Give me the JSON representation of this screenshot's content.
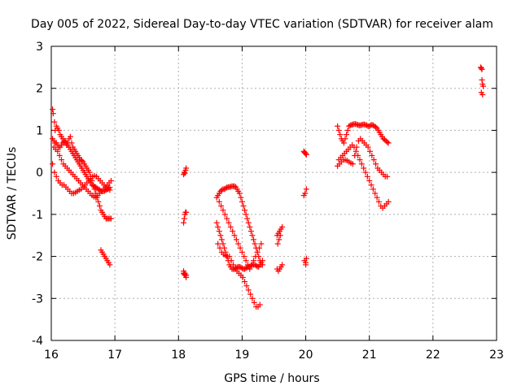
{
  "chart_data": {
    "type": "scatter",
    "title": "Day 005 of 2022, Sidereal Day-to-day VTEC variation (SDTVAR) for receiver alam",
    "xlabel": "GPS time / hours",
    "ylabel": "SDTVAR / TECUs",
    "xlim": [
      16,
      23
    ],
    "ylim": [
      -4,
      3
    ],
    "xticks": [
      "16",
      "17",
      "18",
      "19",
      "20",
      "21",
      "22",
      "23"
    ],
    "yticks": [
      "-4",
      "-3",
      "-2",
      "-1",
      "0",
      "1",
      "2",
      "3"
    ],
    "grid": true,
    "marker": "plus",
    "marker_color": "#ff0000",
    "series": [
      {
        "x": [
          16.02,
          16.03,
          16.05,
          16.06,
          16.08,
          16.1,
          16.12,
          16.14,
          16.16,
          16.18,
          16.2,
          16.22,
          16.24,
          16.26,
          16.28,
          16.3,
          16.32,
          16.34,
          16.36,
          16.38,
          16.4,
          16.42,
          16.44,
          16.46,
          16.48,
          16.5,
          16.52,
          16.54,
          16.56,
          16.58,
          16.6,
          16.62,
          16.64,
          16.66,
          16.68,
          16.7,
          16.72,
          16.74,
          16.76,
          16.78,
          16.8,
          16.82,
          16.84,
          16.86,
          16.88,
          16.9,
          16.92,
          16.94,
          16.02,
          16.04,
          16.06,
          16.08,
          16.1,
          16.12,
          16.14,
          16.16,
          16.18,
          16.2,
          16.22,
          16.24,
          16.26,
          16.28,
          16.3,
          16.32,
          16.34,
          16.36,
          16.38,
          16.4,
          16.42,
          16.44,
          16.46,
          16.48,
          16.5,
          16.52,
          16.54,
          16.56,
          16.58,
          16.6,
          16.62,
          16.64,
          16.66,
          16.68,
          16.7,
          16.72,
          16.74,
          16.76,
          16.78,
          16.8,
          16.82,
          16.84,
          16.86,
          16.88,
          16.9,
          16.92,
          16.02,
          16.05,
          16.08,
          16.11,
          16.14,
          16.17,
          16.2,
          16.23,
          16.26,
          16.29,
          16.32,
          16.35,
          16.38,
          16.41,
          16.44,
          16.47,
          16.5,
          16.53,
          16.56,
          16.59,
          16.62,
          16.65,
          16.68,
          16.71,
          16.74,
          16.77,
          16.8,
          16.83,
          16.86,
          16.89,
          16.92,
          16.04,
          16.07,
          16.1,
          16.13,
          16.16,
          16.19,
          16.22,
          16.25,
          16.28,
          16.31,
          16.34,
          16.37,
          16.4,
          16.43,
          16.46,
          16.49,
          16.52,
          16.55,
          16.58,
          16.61,
          16.64,
          16.67,
          16.7,
          16.73,
          16.76,
          16.79,
          16.82,
          16.85,
          16.88,
          16.91,
          16.94,
          16.78,
          16.8,
          16.82,
          16.84,
          16.86,
          16.88,
          16.9,
          16.92
        ],
        "y": [
          1.5,
          1.4,
          1.2,
          1.0,
          1.1,
          1.05,
          1.0,
          0.9,
          0.85,
          0.8,
          0.75,
          0.7,
          0.65,
          0.7,
          0.8,
          0.85,
          0.7,
          0.6,
          0.55,
          0.5,
          0.45,
          0.4,
          0.35,
          0.3,
          0.28,
          0.25,
          0.2,
          0.15,
          0.1,
          0.05,
          0.0,
          -0.1,
          -0.2,
          -0.3,
          -0.4,
          -0.5,
          -0.6,
          -0.7,
          -0.8,
          -0.9,
          -0.95,
          -1.0,
          -1.05,
          -1.1,
          -1.1,
          -1.1,
          -1.1,
          -1.1,
          0.8,
          0.75,
          0.7,
          0.7,
          0.65,
          0.6,
          0.6,
          0.65,
          0.7,
          0.72,
          0.75,
          0.7,
          0.65,
          0.6,
          0.55,
          0.5,
          0.45,
          0.4,
          0.35,
          0.3,
          0.25,
          0.2,
          0.15,
          0.1,
          0.05,
          0.0,
          -0.05,
          -0.1,
          -0.15,
          -0.2,
          -0.25,
          -0.3,
          -0.32,
          -0.34,
          -0.36,
          -0.38,
          -0.4,
          -0.42,
          -0.44,
          -0.45,
          -0.45,
          -0.44,
          -0.42,
          -0.4,
          -0.38,
          -0.36,
          0.2,
          0.0,
          -0.1,
          -0.2,
          -0.25,
          -0.3,
          -0.3,
          -0.35,
          -0.4,
          -0.45,
          -0.5,
          -0.5,
          -0.48,
          -0.45,
          -0.42,
          -0.4,
          -0.35,
          -0.3,
          -0.25,
          -0.2,
          -0.15,
          -0.1,
          -0.08,
          -0.1,
          -0.15,
          -0.2,
          -0.25,
          -0.3,
          -0.35,
          -0.4,
          -0.42,
          0.6,
          0.55,
          0.5,
          0.4,
          0.3,
          0.2,
          0.15,
          0.1,
          0.05,
          0.0,
          -0.05,
          -0.1,
          -0.15,
          -0.2,
          -0.25,
          -0.3,
          -0.35,
          -0.4,
          -0.45,
          -0.5,
          -0.55,
          -0.58,
          -0.6,
          -0.55,
          -0.5,
          -0.45,
          -0.4,
          -0.35,
          -0.3,
          -0.25,
          -0.2,
          -1.85,
          -1.9,
          -1.95,
          -2.0,
          -2.05,
          -2.1,
          -2.15,
          -2.2
        ]
      },
      {
        "x": [
          18.08,
          18.09,
          18.1,
          18.11,
          18.12,
          18.08,
          18.09,
          18.1,
          18.11,
          18.12,
          18.08,
          18.1,
          18.12,
          18.08,
          18.1,
          18.12,
          18.09,
          18.11
        ],
        "y": [
          -0.05,
          0.0,
          -0.02,
          0.05,
          0.1,
          -1.2,
          -1.1,
          -1.0,
          -0.95,
          -0.95,
          -2.35,
          -2.4,
          -2.45,
          -2.4,
          -2.45,
          -2.5,
          -2.42,
          -2.44
        ]
      },
      {
        "x": [
          18.6,
          18.62,
          18.64,
          18.66,
          18.68,
          18.7,
          18.72,
          18.74,
          18.76,
          18.78,
          18.8,
          18.82,
          18.84,
          18.86,
          18.88,
          18.9,
          18.92,
          18.94,
          18.96,
          18.98,
          19.0,
          19.02,
          19.04,
          19.06,
          19.08,
          19.1,
          19.12,
          19.14,
          19.16,
          19.18,
          19.2,
          19.22,
          19.24,
          19.26,
          19.28,
          19.3,
          19.32,
          18.6,
          18.62,
          18.64,
          18.66,
          18.68,
          18.7,
          18.72,
          18.74,
          18.76,
          18.78,
          18.8,
          18.82,
          18.84,
          18.86,
          18.88,
          18.9,
          18.92,
          18.94,
          18.96,
          18.98,
          19.0,
          19.02,
          19.04,
          19.06,
          19.08,
          19.1,
          19.12,
          19.14,
          19.16,
          19.18,
          19.2,
          19.22,
          19.24,
          19.26,
          19.28,
          19.3,
          19.32,
          18.62,
          18.65,
          18.68,
          18.71,
          18.74,
          18.77,
          18.8,
          18.83,
          18.86,
          18.89,
          18.92,
          18.95,
          18.98,
          19.01,
          19.04,
          19.07,
          19.1,
          19.13,
          19.16,
          19.19,
          19.22,
          19.25,
          19.28,
          18.64,
          18.67,
          18.7,
          18.73,
          18.76,
          18.79,
          18.82,
          18.85,
          18.88,
          18.91,
          18.94,
          18.97,
          19.0,
          19.03,
          19.06,
          19.09,
          19.12,
          19.15,
          19.18,
          19.21,
          19.24,
          19.27,
          19.3,
          19.55,
          19.57,
          19.59,
          19.61,
          19.63,
          19.55,
          19.57,
          19.59,
          19.61,
          19.63,
          19.56,
          19.58,
          19.6
        ],
        "y": [
          -0.6,
          -0.55,
          -0.5,
          -0.45,
          -0.42,
          -0.4,
          -0.4,
          -0.38,
          -0.36,
          -0.35,
          -0.35,
          -0.34,
          -0.33,
          -0.33,
          -0.33,
          -0.35,
          -0.4,
          -0.45,
          -0.5,
          -0.6,
          -0.7,
          -0.8,
          -0.9,
          -1.0,
          -1.1,
          -1.2,
          -1.3,
          -1.4,
          -1.5,
          -1.6,
          -1.7,
          -1.8,
          -1.9,
          -2.0,
          -2.1,
          -2.2,
          -2.2,
          -1.2,
          -1.3,
          -1.4,
          -1.5,
          -1.6,
          -1.7,
          -1.8,
          -1.9,
          -2.0,
          -2.1,
          -2.2,
          -2.25,
          -2.3,
          -2.3,
          -2.3,
          -2.28,
          -2.26,
          -2.25,
          -2.25,
          -2.26,
          -2.28,
          -2.3,
          -2.3,
          -2.28,
          -2.26,
          -2.25,
          -2.24,
          -2.22,
          -2.2,
          -2.2,
          -2.2,
          -2.22,
          -2.24,
          -2.25,
          -2.2,
          -2.15,
          -2.1,
          -1.7,
          -1.8,
          -1.9,
          -1.95,
          -1.98,
          -2.0,
          -2.0,
          -2.1,
          -2.2,
          -2.3,
          -2.35,
          -2.4,
          -2.45,
          -2.5,
          -2.6,
          -2.7,
          -2.8,
          -2.9,
          -3.0,
          -3.1,
          -3.2,
          -3.2,
          -3.15,
          -0.7,
          -0.8,
          -0.9,
          -1.0,
          -1.1,
          -1.2,
          -1.3,
          -1.4,
          -1.5,
          -1.6,
          -1.7,
          -1.8,
          -1.9,
          -2.0,
          -2.1,
          -2.2,
          -2.3,
          -2.2,
          -2.1,
          -2.0,
          -1.9,
          -1.8,
          -1.7,
          -1.5,
          -1.45,
          -1.4,
          -1.35,
          -1.3,
          -2.3,
          -2.35,
          -2.3,
          -2.25,
          -2.2,
          -1.7,
          -1.6,
          -1.5
        ]
      },
      {
        "x": [
          19.97,
          19.98,
          19.99,
          20.0,
          20.01,
          19.97,
          19.99,
          20.01,
          19.98,
          20.0,
          20.0,
          20.01
        ],
        "y": [
          0.5,
          0.48,
          0.46,
          0.45,
          0.42,
          -0.55,
          -0.5,
          -0.4,
          -2.1,
          -2.15,
          -2.2,
          -2.05
        ]
      },
      {
        "x": [
          20.5,
          20.52,
          20.54,
          20.56,
          20.58,
          20.6,
          20.62,
          20.64,
          20.66,
          20.68,
          20.7,
          20.72,
          20.74,
          20.76,
          20.78,
          20.8,
          20.82,
          20.84,
          20.86,
          20.88,
          20.9,
          20.92,
          20.94,
          20.96,
          20.98,
          21.0,
          21.02,
          21.04,
          21.06,
          21.08,
          21.1,
          21.12,
          21.14,
          21.16,
          21.18,
          21.2,
          21.22,
          21.24,
          21.26,
          21.28,
          21.3,
          20.5,
          20.53,
          20.56,
          20.59,
          20.62,
          20.65,
          20.68,
          20.71,
          20.74,
          20.77,
          20.8,
          20.83,
          20.86,
          20.89,
          20.92,
          20.95,
          20.98,
          21.01,
          21.04,
          21.07,
          21.1,
          21.13,
          21.16,
          21.19,
          21.22,
          21.25,
          21.28,
          20.52,
          20.55,
          20.58,
          20.61,
          20.64,
          20.67,
          20.7,
          20.73,
          20.76,
          20.79,
          20.82,
          20.85,
          20.88,
          20.91,
          20.94,
          20.97,
          21.0,
          21.03,
          21.06,
          21.09,
          21.12,
          21.15,
          21.18,
          21.21,
          21.24,
          21.27,
          21.3,
          22.75,
          22.76,
          22.77,
          22.78,
          22.79,
          22.76,
          22.78,
          22.77
        ],
        "y": [
          1.1,
          1.0,
          0.9,
          0.8,
          0.75,
          0.7,
          0.8,
          0.9,
          1.0,
          1.1,
          1.12,
          1.13,
          1.14,
          1.15,
          1.15,
          1.14,
          1.13,
          1.12,
          1.12,
          1.13,
          1.14,
          1.14,
          1.13,
          1.12,
          1.1,
          1.1,
          1.12,
          1.13,
          1.12,
          1.1,
          1.08,
          1.05,
          1.0,
          0.95,
          0.9,
          0.85,
          0.8,
          0.78,
          0.75,
          0.72,
          0.7,
          0.15,
          0.2,
          0.25,
          0.3,
          0.3,
          0.28,
          0.25,
          0.22,
          0.2,
          0.4,
          0.6,
          0.75,
          0.8,
          0.75,
          0.7,
          0.65,
          0.6,
          0.5,
          0.4,
          0.3,
          0.2,
          0.1,
          0.05,
          0.0,
          -0.05,
          -0.1,
          -0.1,
          0.3,
          0.35,
          0.4,
          0.45,
          0.5,
          0.55,
          0.6,
          0.65,
          0.6,
          0.5,
          0.4,
          0.3,
          0.2,
          0.1,
          0.0,
          -0.1,
          -0.2,
          -0.3,
          -0.4,
          -0.5,
          -0.6,
          -0.7,
          -0.8,
          -0.85,
          -0.8,
          -0.75,
          -0.7,
          2.5,
          2.48,
          2.45,
          2.1,
          2.05,
          1.9,
          1.85,
          2.2
        ]
      }
    ]
  }
}
